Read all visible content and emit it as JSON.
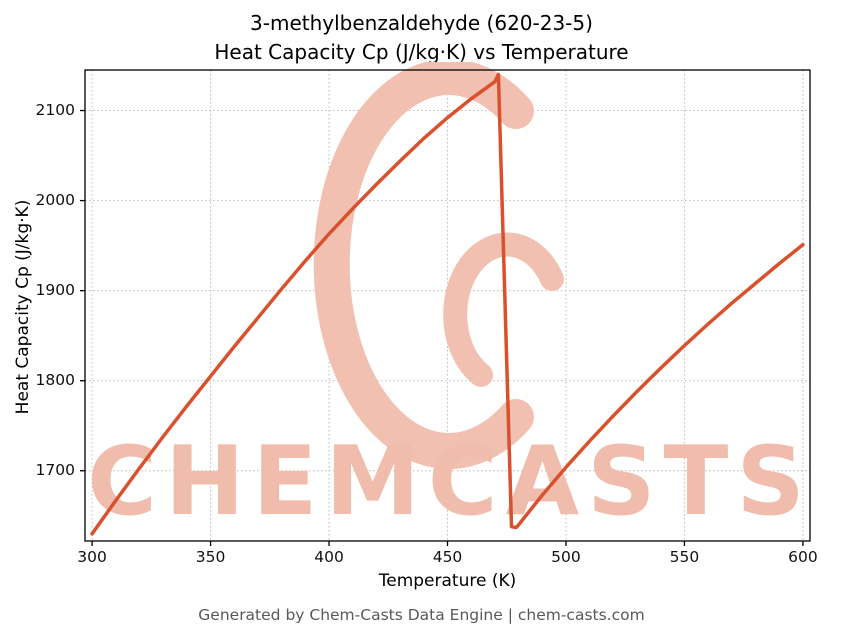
{
  "header": {
    "line1": "3-methylbenzaldehyde (620-23-5)",
    "line2": "Heat Capacity Cp (J/kg·K) vs Temperature"
  },
  "footer": {
    "text": "Generated by Chem-Casts Data Engine | chem-casts.com"
  },
  "watermark": {
    "text": "CHEMCASTS",
    "logo": "chemcasts-c-swoosh-icon",
    "text_color": "#f0bcab",
    "logo_color": "#f2c0b0"
  },
  "chart_data": {
    "type": "line",
    "title": "3-methylbenzaldehyde (620-23-5) Heat Capacity Cp (J/kg·K) vs Temperature",
    "xlabel": "Temperature (K)",
    "ylabel": "Heat Capacity Cp (J/kg·K)",
    "xlim": [
      297,
      603
    ],
    "ylim": [
      1622,
      2145
    ],
    "xticks": [
      300,
      350,
      400,
      450,
      500,
      550,
      600
    ],
    "yticks": [
      1700,
      1800,
      1900,
      2000,
      2100
    ],
    "grid": true,
    "grid_color": "#b3b3b3",
    "line_color": "#d9512c",
    "line_width": 3.5,
    "series": [
      {
        "name": "Cp",
        "x": [
          300,
          310,
          320,
          330,
          340,
          350,
          360,
          370,
          380,
          390,
          400,
          410,
          420,
          430,
          440,
          450,
          460,
          470,
          471.5,
          477,
          479,
          480,
          490,
          500,
          510,
          520,
          530,
          540,
          550,
          560,
          570,
          580,
          590,
          600
        ],
        "y": [
          1630,
          1667,
          1703,
          1738,
          1772,
          1805,
          1838,
          1870,
          1902,
          1933,
          1963,
          1991,
          2018,
          2044,
          2069,
          2092,
          2113,
          2132,
          2140,
          1638,
          1637,
          1640,
          1673,
          1704,
          1733,
          1761,
          1788,
          1814,
          1839,
          1863,
          1886,
          1908,
          1930,
          1951
        ]
      }
    ]
  }
}
